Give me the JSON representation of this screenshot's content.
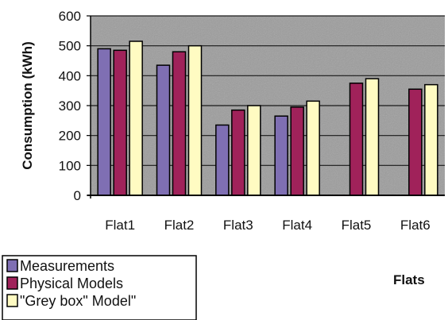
{
  "chart_data": {
    "type": "bar",
    "categories": [
      "Flat1",
      "Flat2",
      "Flat3",
      "Flat4",
      "Flat5",
      "Flat6"
    ],
    "series": [
      {
        "name": "Measurements",
        "values": [
          490,
          435,
          235,
          265,
          null,
          null
        ],
        "color": "#7f6fb3"
      },
      {
        "name": "Physical Models",
        "values": [
          485,
          480,
          285,
          295,
          375,
          355
        ],
        "color": "#a0225a"
      },
      {
        "name": "\"Grey box\" Model\"",
        "values": [
          515,
          500,
          300,
          315,
          390,
          370
        ],
        "color": "#fffbc2"
      }
    ],
    "xlabel": "Flats",
    "ylabel": "Consumption (kWh)",
    "ylim": [
      0,
      600
    ],
    "yticks": [
      "0",
      "100",
      "200",
      "300",
      "400",
      "500",
      "600"
    ],
    "grid": true,
    "legend_position": "bottom-left",
    "plot_background": "#9c9c9c"
  }
}
